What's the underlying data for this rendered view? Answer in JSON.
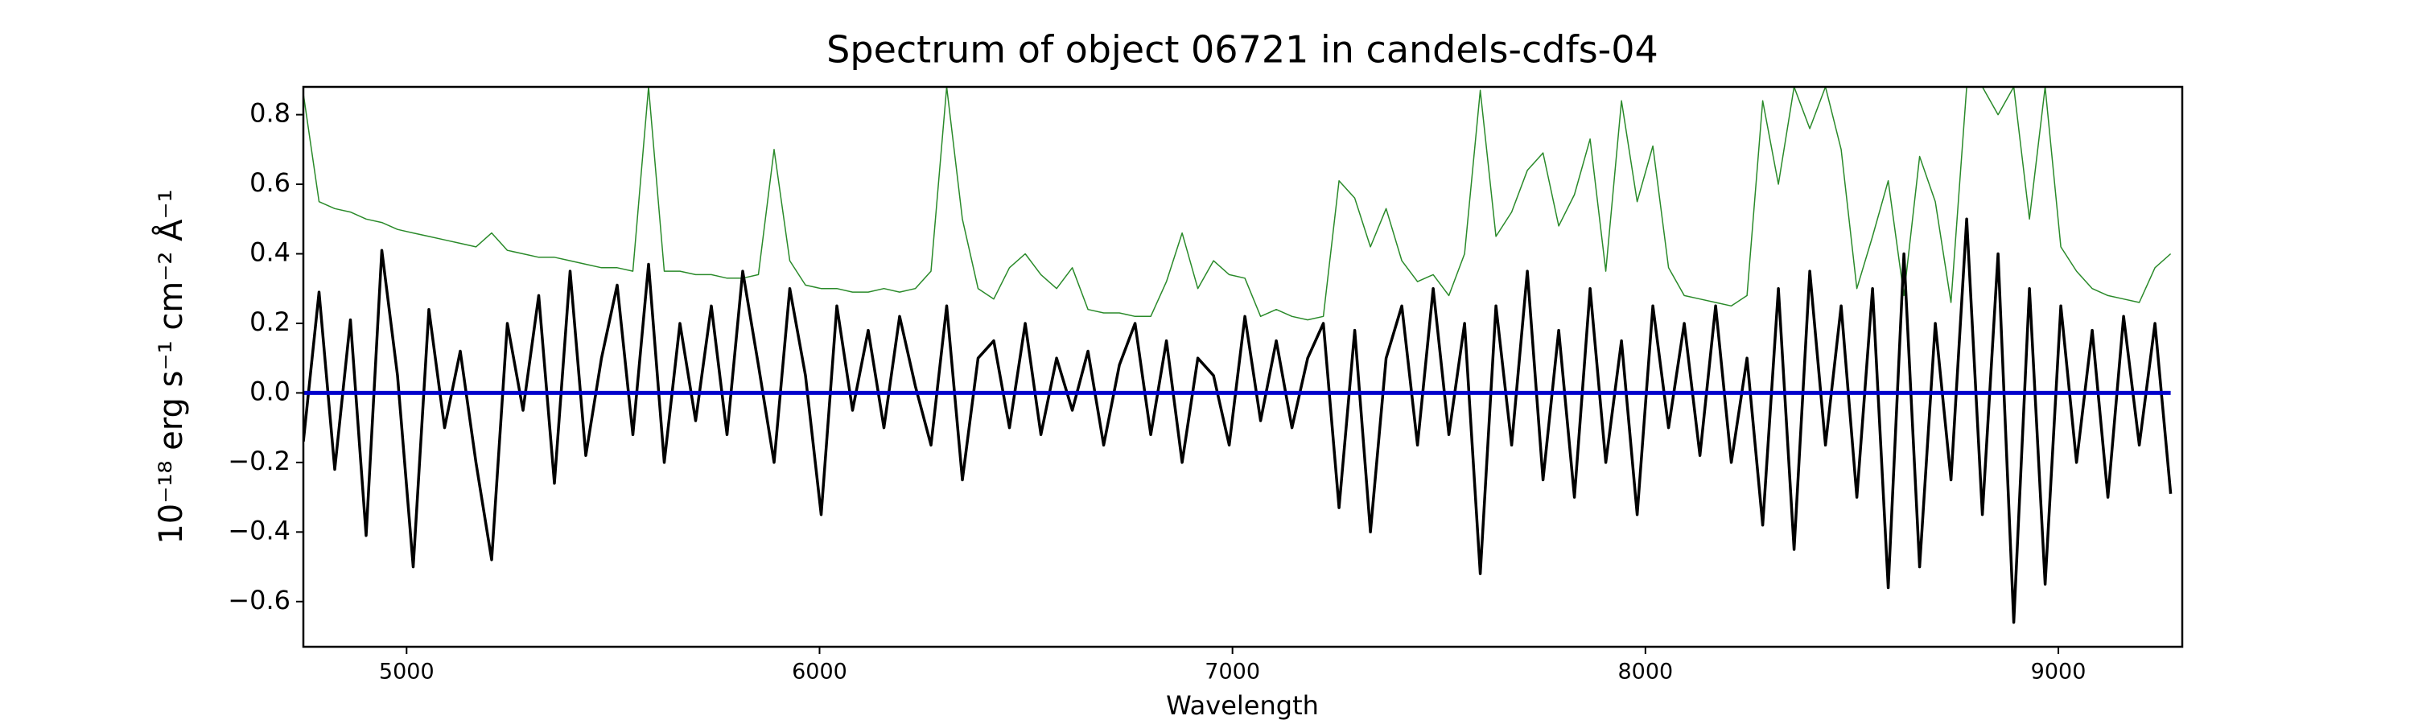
{
  "chart_data": {
    "type": "line",
    "title": "Spectrum of object 06721 in candels-cdfs-04",
    "x_label": "Wavelength",
    "y_label": "10⁻¹⁸ erg s⁻¹ cm⁻² Å⁻¹",
    "xlim": [
      4750,
      9300
    ],
    "ylim": [
      -0.73,
      0.88
    ],
    "xticks": [
      5000,
      6000,
      7000,
      8000,
      9000
    ],
    "yticks": [
      {
        "value": -0.6,
        "label": "−0.6"
      },
      {
        "value": -0.4,
        "label": "−0.4"
      },
      {
        "value": -0.2,
        "label": "−0.2"
      },
      {
        "value": 0,
        "label": "0.0"
      },
      {
        "value": 0.2,
        "label": "0.2"
      },
      {
        "value": 0.4,
        "label": "0.4"
      },
      {
        "value": 0.6,
        "label": "0.6"
      },
      {
        "value": 0.8,
        "label": "0.8"
      }
    ],
    "grid": false,
    "x": [
      4750,
      4788,
      4826,
      4864,
      4902,
      4940,
      4978,
      5016,
      5054,
      5092,
      5130,
      5168,
      5206,
      5244,
      5282,
      5320,
      5358,
      5396,
      5434,
      5472,
      5510,
      5548,
      5586,
      5624,
      5662,
      5700,
      5738,
      5776,
      5814,
      5852,
      5890,
      5928,
      5966,
      6004,
      6042,
      6080,
      6118,
      6156,
      6194,
      6232,
      6270,
      6308,
      6346,
      6384,
      6422,
      6460,
      6498,
      6536,
      6574,
      6612,
      6650,
      6688,
      6726,
      6764,
      6802,
      6840,
      6878,
      6916,
      6954,
      6992,
      7030,
      7068,
      7106,
      7144,
      7182,
      7220,
      7258,
      7296,
      7334,
      7372,
      7410,
      7448,
      7486,
      7524,
      7562,
      7600,
      7638,
      7676,
      7714,
      7752,
      7790,
      7828,
      7866,
      7904,
      7942,
      7980,
      8018,
      8056,
      8094,
      8132,
      8170,
      8208,
      8246,
      8284,
      8322,
      8360,
      8398,
      8436,
      8474,
      8512,
      8550,
      8588,
      8626,
      8664,
      8702,
      8740,
      8778,
      8816,
      8854,
      8892,
      8930,
      8968,
      9006,
      9044,
      9082,
      9120,
      9158,
      9196,
      9234,
      9272
    ],
    "series": [
      {
        "color": "#2a8a2a",
        "values": [
          0.86,
          0.55,
          0.53,
          0.52,
          0.5,
          0.49,
          0.47,
          0.46,
          0.45,
          0.44,
          0.43,
          0.42,
          0.46,
          0.41,
          0.4,
          0.39,
          0.39,
          0.38,
          0.37,
          0.36,
          0.36,
          0.35,
          0.88,
          0.35,
          0.35,
          0.34,
          0.34,
          0.33,
          0.33,
          0.34,
          0.7,
          0.38,
          0.31,
          0.3,
          0.3,
          0.29,
          0.29,
          0.3,
          0.29,
          0.3,
          0.35,
          0.88,
          0.5,
          0.3,
          0.27,
          0.36,
          0.4,
          0.34,
          0.3,
          0.36,
          0.24,
          0.23,
          0.23,
          0.22,
          0.22,
          0.32,
          0.46,
          0.3,
          0.38,
          0.34,
          0.33,
          0.22,
          0.24,
          0.22,
          0.21,
          0.22,
          0.61,
          0.56,
          0.42,
          0.53,
          0.38,
          0.32,
          0.34,
          0.28,
          0.4,
          0.87,
          0.45,
          0.52,
          0.64,
          0.69,
          0.48,
          0.57,
          0.73,
          0.35,
          0.84,
          0.55,
          0.71,
          0.36,
          0.28,
          0.27,
          0.26,
          0.25,
          0.28,
          0.84,
          0.6,
          0.88,
          0.76,
          0.88,
          0.7,
          0.3,
          0.45,
          0.61,
          0.28,
          0.68,
          0.55,
          0.26,
          0.88,
          0.88,
          0.8,
          0.88,
          0.5,
          0.88,
          0.42,
          0.35,
          0.3,
          0.28,
          0.27,
          0.26,
          0.36,
          0.4
        ]
      },
      {
        "color": "#000000",
        "values": [
          -0.14,
          0.29,
          -0.22,
          0.21,
          -0.41,
          0.41,
          0.05,
          -0.5,
          0.24,
          -0.1,
          0.12,
          -0.2,
          -0.48,
          0.2,
          -0.05,
          0.28,
          -0.26,
          0.35,
          -0.18,
          0.1,
          0.31,
          -0.12,
          0.37,
          -0.2,
          0.2,
          -0.08,
          0.25,
          -0.12,
          0.35,
          0.08,
          -0.2,
          0.3,
          0.05,
          -0.35,
          0.25,
          -0.05,
          0.18,
          -0.1,
          0.22,
          0.02,
          -0.15,
          0.25,
          -0.25,
          0.1,
          0.15,
          -0.1,
          0.2,
          -0.12,
          0.1,
          -0.05,
          0.12,
          -0.15,
          0.08,
          0.2,
          -0.12,
          0.15,
          -0.2,
          0.1,
          0.05,
          -0.15,
          0.22,
          -0.08,
          0.15,
          -0.1,
          0.1,
          0.2,
          -0.33,
          0.18,
          -0.4,
          0.1,
          0.25,
          -0.15,
          0.3,
          -0.12,
          0.2,
          -0.52,
          0.25,
          -0.15,
          0.35,
          -0.25,
          0.18,
          -0.3,
          0.3,
          -0.2,
          0.15,
          -0.35,
          0.25,
          -0.1,
          0.2,
          -0.18,
          0.25,
          -0.2,
          0.1,
          -0.38,
          0.3,
          -0.45,
          0.35,
          -0.15,
          0.25,
          -0.3,
          0.3,
          -0.56,
          0.4,
          -0.5,
          0.2,
          -0.25,
          0.5,
          -0.35,
          0.4,
          -0.66,
          0.3,
          -0.55,
          0.25,
          -0.2,
          0.18,
          -0.3,
          0.22,
          -0.15,
          0.2,
          -0.29
        ]
      },
      {
        "color": "#0000cc",
        "values": [
          0,
          0,
          0,
          0,
          0,
          0,
          0,
          0,
          0,
          0,
          0,
          0,
          0,
          0,
          0,
          0,
          0,
          0,
          0,
          0,
          0,
          0,
          0,
          0,
          0,
          0,
          0,
          0,
          0,
          0,
          0,
          0,
          0,
          0,
          0,
          0,
          0,
          0,
          0,
          0,
          0,
          0,
          0,
          0,
          0,
          0,
          0,
          0,
          0,
          0,
          0,
          0,
          0,
          0,
          0,
          0,
          0,
          0,
          0,
          0,
          0,
          0,
          0,
          0,
          0,
          0,
          0,
          0,
          0,
          0,
          0,
          0,
          0,
          0,
          0,
          0,
          0,
          0,
          0,
          0,
          0,
          0,
          0,
          0,
          0,
          0,
          0,
          0,
          0,
          0,
          0,
          0,
          0,
          0,
          0,
          0,
          0,
          0,
          0,
          0,
          0,
          0,
          0,
          0,
          0,
          0,
          0,
          0,
          0,
          0,
          0,
          0,
          0,
          0,
          0,
          0,
          0,
          0,
          0,
          0
        ]
      }
    ]
  }
}
